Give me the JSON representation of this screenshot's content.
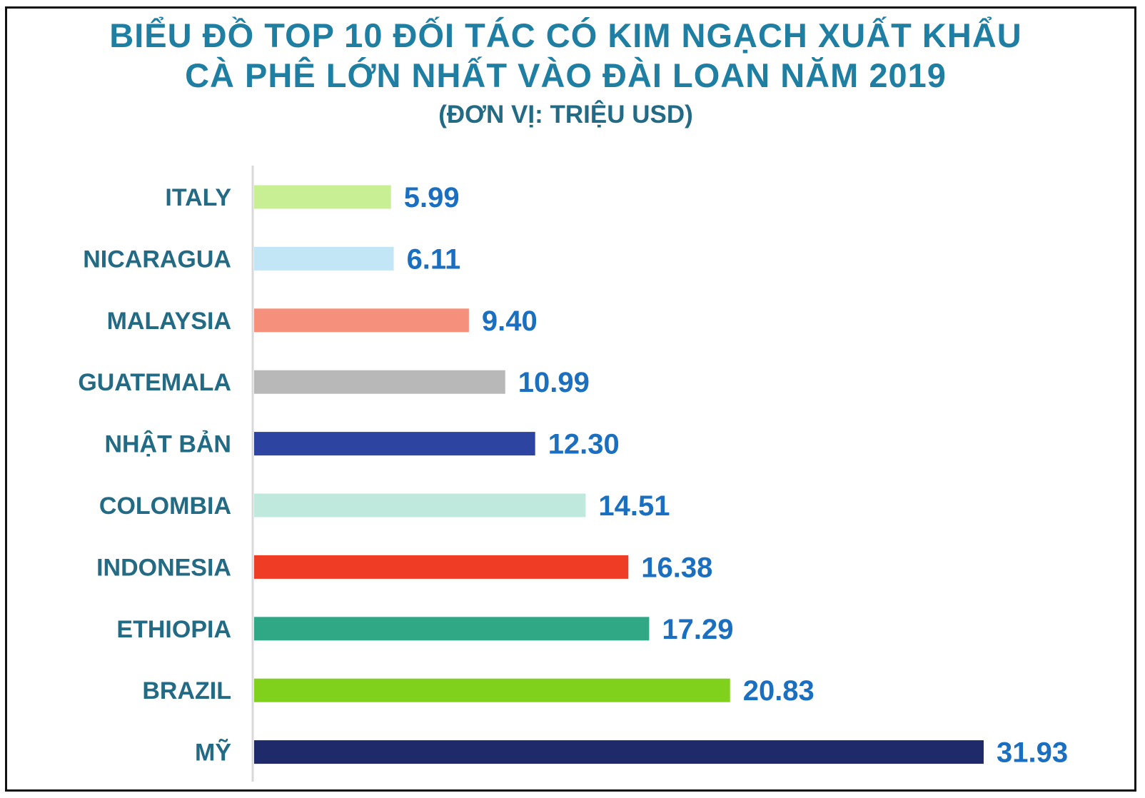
{
  "chart_data": {
    "type": "bar",
    "orientation": "horizontal",
    "title_lines": [
      "BIỂU ĐỒ TOP 10 ĐỐI TÁC CÓ KIM NGẠCH XUẤT KHẨU",
      "CÀ PHÊ LỚN NHẤT VÀO ĐÀI LOAN NĂM 2019"
    ],
    "subtitle": "(ĐƠN VỊ: TRIỆU USD)",
    "xlabel": "",
    "ylabel": "",
    "grid": false,
    "legend": "none",
    "categories": [
      "ITALY",
      "NICARAGUA",
      "MALAYSIA",
      "GUATEMALA",
      "NHẬT BẢN",
      "COLOMBIA",
      "INDONESIA",
      "ETHIOPIA",
      "BRAZIL",
      "MỸ"
    ],
    "values": [
      5.99,
      6.11,
      9.4,
      10.99,
      12.3,
      14.51,
      16.38,
      17.29,
      20.83,
      31.93
    ],
    "value_labels": [
      "5.99",
      "6.11",
      "9.40",
      "10.99",
      "12.30",
      "14.51",
      "16.38",
      "17.29",
      "20.83",
      "31.93"
    ],
    "bar_colors": [
      "#c9ef95",
      "#c3e6f7",
      "#f4907c",
      "#b8b8b8",
      "#2d44a0",
      "#bfe9dc",
      "#ee3d24",
      "#30a785",
      "#7fd11c",
      "#1f2a6b"
    ],
    "xlim": [
      0,
      31.93
    ]
  },
  "colors": {
    "title": "#1f7fa3",
    "category_label": "#236a84",
    "value_label": "#1a6fc0",
    "axis": "#d9d9d9",
    "border": "#111111"
  }
}
